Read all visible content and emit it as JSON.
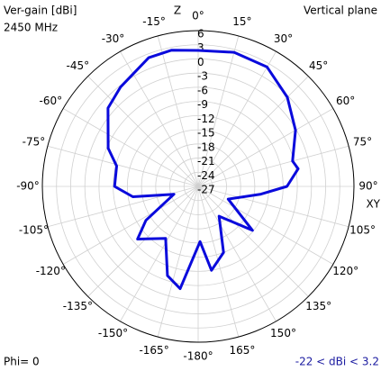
{
  "chart_data": {
    "type": "polar_line",
    "title": "Ver-gain [dBi]",
    "subtitle": "2450 MHz",
    "plane": "Vertical plane",
    "axis_top": "Z",
    "axis_right": "XY",
    "footer_left": "Phi= 0",
    "footer_right": "-22 < dBi < 3.2",
    "rlim": [
      -27,
      6
    ],
    "rticks": [
      6,
      3,
      0,
      -3,
      -6,
      -9,
      -12,
      -15,
      -18,
      -21,
      -24,
      -27
    ],
    "thetaticks": [
      {
        "value": 0,
        "label": "0°"
      },
      {
        "value": 15,
        "label": "15°"
      },
      {
        "value": 30,
        "label": "30°"
      },
      {
        "value": 45,
        "label": "45°"
      },
      {
        "value": 60,
        "label": "60°"
      },
      {
        "value": 75,
        "label": "75°"
      },
      {
        "value": 90,
        "label": "90°"
      },
      {
        "value": 105,
        "label": "105°"
      },
      {
        "value": 120,
        "label": "120°"
      },
      {
        "value": 135,
        "label": "135°"
      },
      {
        "value": 150,
        "label": "150°"
      },
      {
        "value": 165,
        "label": "165°"
      },
      {
        "value": -180,
        "label": "-180°"
      },
      {
        "value": -165,
        "label": "-165°"
      },
      {
        "value": -150,
        "label": "-150°"
      },
      {
        "value": -135,
        "label": "-135°"
      },
      {
        "value": -120,
        "label": "-120°"
      },
      {
        "value": -105,
        "label": "-105°"
      },
      {
        "value": -90,
        "label": "-90°"
      },
      {
        "value": -75,
        "label": "-75°"
      },
      {
        "value": -60,
        "label": "-60°"
      },
      {
        "value": -45,
        "label": "-45°"
      },
      {
        "value": -30,
        "label": "-30°"
      },
      {
        "value": -15,
        "label": "-15°"
      }
    ],
    "theta": [
      0,
      15,
      30,
      45,
      60,
      75,
      80,
      90,
      97,
      113,
      129,
      145,
      159,
      171,
      178,
      -170,
      -161,
      -148,
      -131,
      -123,
      -108,
      -99,
      -90,
      -76,
      -67,
      -49,
      -38,
      -21,
      -11
    ],
    "values": [
      1.8,
      2.4,
      2.2,
      -0.3,
      -3.2,
      -6.3,
      -5.5,
      -8.2,
      -13.6,
      -20.1,
      -12.2,
      -19.3,
      -12,
      -9,
      -15.3,
      -5,
      -7,
      -14,
      -10,
      -13.8,
      -21.6,
      -13,
      -9.3,
      -9.2,
      -6.3,
      -1.7,
      -0.3,
      2.2,
      2.4
    ],
    "color": "#0a0adc",
    "footer_right_color": "#1a1aa0"
  }
}
